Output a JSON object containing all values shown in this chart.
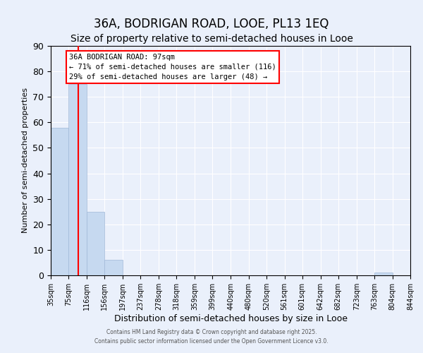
{
  "title": "36A, BODRIGAN ROAD, LOOE, PL13 1EQ",
  "subtitle": "Size of property relative to semi-detached houses in Looe",
  "xlabel": "Distribution of semi-detached houses by size in Looe",
  "ylabel": "Number of semi-detached properties",
  "bar_edges": [
    35,
    75,
    116,
    156,
    197,
    237,
    278,
    318,
    359,
    399,
    440,
    480,
    520,
    561,
    601,
    642,
    682,
    723,
    763,
    804,
    844
  ],
  "bar_heights": [
    58,
    75,
    25,
    6,
    0,
    0,
    0,
    0,
    0,
    0,
    0,
    0,
    0,
    0,
    0,
    0,
    0,
    0,
    1,
    0
  ],
  "bar_color": "#c6d9f0",
  "bar_edge_color": "#a0b8d8",
  "property_line_x": 97,
  "property_line_color": "red",
  "annotation_title": "36A BODRIGAN ROAD: 97sqm",
  "annotation_line2": "← 71% of semi-detached houses are smaller (116)",
  "annotation_line3": "29% of semi-detached houses are larger (48) →",
  "annotation_box_color": "red",
  "annotation_bg": "white",
  "ylim": [
    0,
    90
  ],
  "yticks": [
    0,
    10,
    20,
    30,
    40,
    50,
    60,
    70,
    80,
    90
  ],
  "bg_color": "#eaf0fb",
  "plot_bg_color": "#eaf0fb",
  "grid_color": "white",
  "footer_line1": "Contains HM Land Registry data © Crown copyright and database right 2025.",
  "footer_line2": "Contains public sector information licensed under the Open Government Licence v3.0.",
  "title_fontsize": 12,
  "subtitle_fontsize": 10,
  "tick_label_fontsize": 7,
  "annotation_fontsize": 7.5,
  "ylabel_fontsize": 8,
  "xlabel_fontsize": 9
}
